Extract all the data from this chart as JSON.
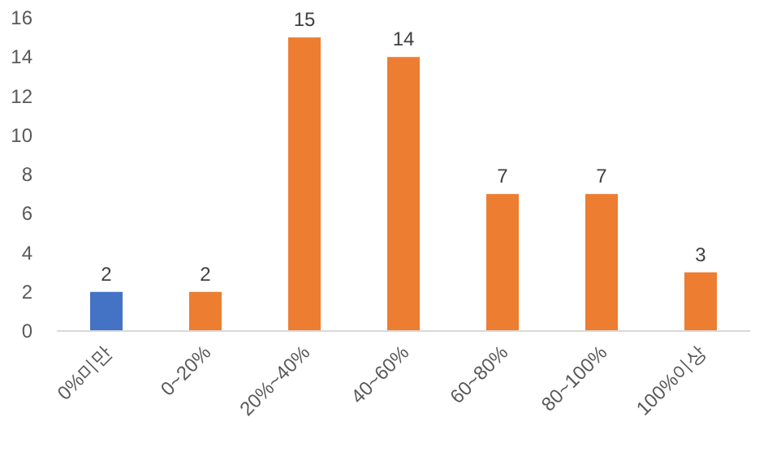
{
  "chart_data": {
    "type": "bar",
    "categories": [
      "0%미만",
      "0~20%",
      "20%~40%",
      "40~60%",
      "60~80%",
      "80~100%",
      "100%이상"
    ],
    "values": [
      2,
      2,
      15,
      14,
      7,
      7,
      3
    ],
    "colors": [
      "#4472c4",
      "#ed7d31",
      "#ed7d31",
      "#ed7d31",
      "#ed7d31",
      "#ed7d31",
      "#ed7d31"
    ],
    "ylim": [
      0,
      16
    ],
    "yticks": [
      0,
      2,
      4,
      6,
      8,
      10,
      12,
      14,
      16
    ],
    "data_labels": true
  }
}
